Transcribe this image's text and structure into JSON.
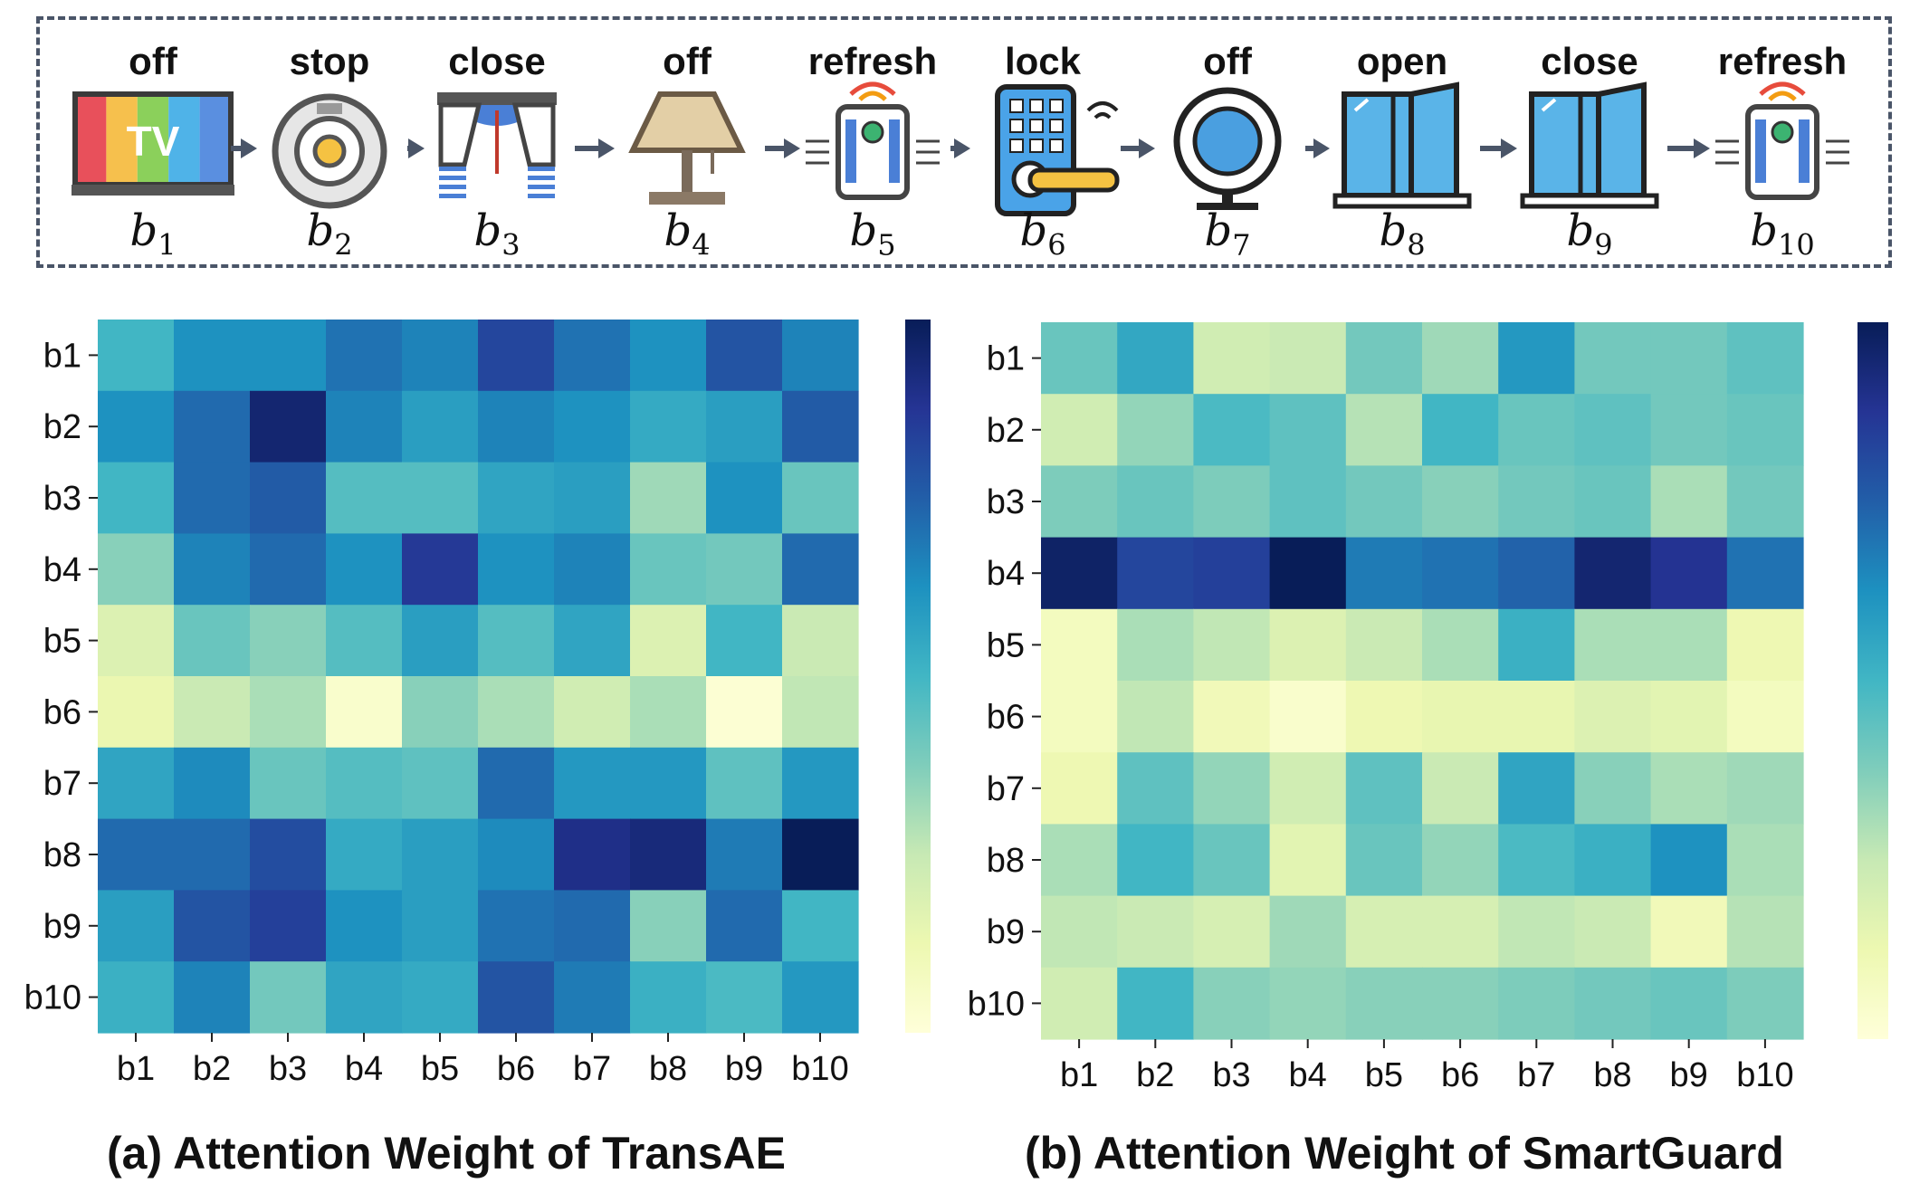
{
  "sequence": [
    {
      "action": "off",
      "label": "b",
      "sub": "1",
      "icon": "tv-icon"
    },
    {
      "action": "stop",
      "label": "b",
      "sub": "2",
      "icon": "robot-vacuum-icon"
    },
    {
      "action": "close",
      "label": "b",
      "sub": "3",
      "icon": "curtain-icon"
    },
    {
      "action": "off",
      "label": "b",
      "sub": "4",
      "icon": "lamp-icon"
    },
    {
      "action": "refresh",
      "label": "b",
      "sub": "5",
      "icon": "air-purifier-icon"
    },
    {
      "action": "lock",
      "label": "b",
      "sub": "6",
      "icon": "smart-lock-icon"
    },
    {
      "action": "off",
      "label": "b",
      "sub": "7",
      "icon": "camera-icon"
    },
    {
      "action": "open",
      "label": "b",
      "sub": "8",
      "icon": "window-icon"
    },
    {
      "action": "close",
      "label": "b",
      "sub": "9",
      "icon": "window-icon"
    },
    {
      "action": "refresh",
      "label": "b",
      "sub": "10",
      "icon": "air-purifier-icon"
    }
  ],
  "colors": {
    "arrow": "#4a5568",
    "colormap": [
      "#ffffd9",
      "#edf8b1",
      "#c7e9b4",
      "#7fcdbb",
      "#41b6c4",
      "#1d91c0",
      "#225ea8",
      "#253494",
      "#081d58"
    ]
  },
  "chart_data": [
    {
      "type": "heatmap",
      "title": "(a) Attention Weight of TransAE",
      "x": [
        "b1",
        "b2",
        "b3",
        "b4",
        "b5",
        "b6",
        "b7",
        "b8",
        "b9",
        "b10"
      ],
      "y": [
        "b1",
        "b2",
        "b3",
        "b4",
        "b5",
        "b6",
        "b7",
        "b8",
        "b9",
        "b10"
      ],
      "values": [
        [
          0.5,
          0.62,
          0.62,
          0.7,
          0.66,
          0.82,
          0.7,
          0.62,
          0.78,
          0.66
        ],
        [
          0.62,
          0.72,
          0.95,
          0.66,
          0.58,
          0.66,
          0.62,
          0.54,
          0.58,
          0.76
        ],
        [
          0.5,
          0.72,
          0.76,
          0.46,
          0.46,
          0.56,
          0.58,
          0.32,
          0.62,
          0.42
        ],
        [
          0.36,
          0.66,
          0.72,
          0.62,
          0.86,
          0.62,
          0.66,
          0.42,
          0.4,
          0.72
        ],
        [
          0.18,
          0.42,
          0.36,
          0.46,
          0.58,
          0.46,
          0.56,
          0.18,
          0.5,
          0.24
        ],
        [
          0.13,
          0.24,
          0.3,
          0.04,
          0.36,
          0.3,
          0.22,
          0.3,
          0.02,
          0.26
        ],
        [
          0.56,
          0.64,
          0.42,
          0.46,
          0.44,
          0.72,
          0.6,
          0.6,
          0.44,
          0.6
        ],
        [
          0.72,
          0.72,
          0.8,
          0.54,
          0.58,
          0.64,
          0.9,
          0.93,
          0.68,
          1.0
        ],
        [
          0.58,
          0.78,
          0.84,
          0.62,
          0.58,
          0.7,
          0.72,
          0.36,
          0.72,
          0.5
        ],
        [
          0.52,
          0.66,
          0.4,
          0.56,
          0.54,
          0.78,
          0.68,
          0.52,
          0.48,
          0.6
        ]
      ],
      "colorbar": true
    },
    {
      "type": "heatmap",
      "title": "(b) Attention Weight of SmartGuard",
      "x": [
        "b1",
        "b2",
        "b3",
        "b4",
        "b5",
        "b6",
        "b7",
        "b8",
        "b9",
        "b10"
      ],
      "y": [
        "b1",
        "b2",
        "b3",
        "b4",
        "b5",
        "b6",
        "b7",
        "b8",
        "b9",
        "b10"
      ],
      "values": [
        [
          0.42,
          0.55,
          0.22,
          0.24,
          0.4,
          0.32,
          0.6,
          0.4,
          0.4,
          0.44
        ],
        [
          0.22,
          0.34,
          0.48,
          0.44,
          0.28,
          0.5,
          0.42,
          0.44,
          0.4,
          0.42
        ],
        [
          0.38,
          0.42,
          0.38,
          0.44,
          0.4,
          0.36,
          0.4,
          0.42,
          0.3,
          0.4
        ],
        [
          0.97,
          0.82,
          0.84,
          1.0,
          0.68,
          0.7,
          0.74,
          0.95,
          0.88,
          0.7
        ],
        [
          0.08,
          0.3,
          0.26,
          0.18,
          0.24,
          0.3,
          0.52,
          0.3,
          0.3,
          0.12
        ],
        [
          0.08,
          0.26,
          0.1,
          0.04,
          0.12,
          0.14,
          0.14,
          0.18,
          0.16,
          0.08
        ],
        [
          0.12,
          0.44,
          0.34,
          0.22,
          0.44,
          0.24,
          0.56,
          0.36,
          0.3,
          0.32
        ],
        [
          0.3,
          0.5,
          0.42,
          0.16,
          0.42,
          0.34,
          0.48,
          0.52,
          0.62,
          0.3
        ],
        [
          0.26,
          0.24,
          0.2,
          0.32,
          0.2,
          0.2,
          0.26,
          0.24,
          0.1,
          0.28
        ],
        [
          0.22,
          0.5,
          0.36,
          0.34,
          0.36,
          0.36,
          0.38,
          0.4,
          0.42,
          0.38
        ]
      ],
      "colorbar": true
    }
  ]
}
